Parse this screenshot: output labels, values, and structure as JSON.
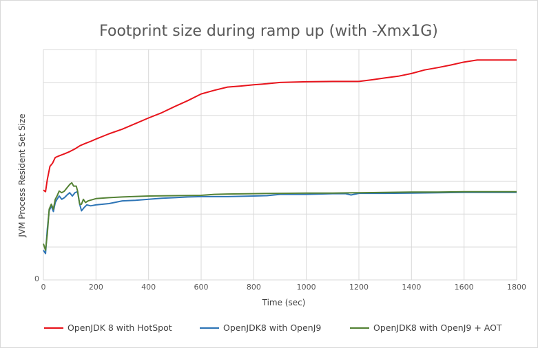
{
  "chart_data": {
    "type": "line",
    "title": "Footprint size during ramp up (with -Xmx1G)",
    "xlabel": "Time (sec)",
    "ylabel": "JVM Process Resident Set Size",
    "xlim": [
      0,
      1800
    ],
    "ylim": [
      0,
      7
    ],
    "x_ticks": [
      0,
      200,
      400,
      600,
      800,
      1000,
      1200,
      1400,
      1600,
      1800
    ],
    "y_tick_labels": [
      "0"
    ],
    "grid": true,
    "legend_position": "bottom",
    "colors": {
      "hotspot": "#e8141c",
      "openj9": "#2e75b6",
      "openj9_aot": "#548235",
      "grid": "#d9d9d9"
    },
    "series": [
      {
        "name": "OpenJDK 8 with HotSpot",
        "color": "#e8141c",
        "points": [
          [
            0,
            2.73
          ],
          [
            8,
            2.68
          ],
          [
            15,
            3.05
          ],
          [
            25,
            3.45
          ],
          [
            35,
            3.55
          ],
          [
            45,
            3.72
          ],
          [
            60,
            3.77
          ],
          [
            80,
            3.83
          ],
          [
            100,
            3.9
          ],
          [
            120,
            3.98
          ],
          [
            140,
            4.08
          ],
          [
            160,
            4.15
          ],
          [
            180,
            4.21
          ],
          [
            200,
            4.28
          ],
          [
            250,
            4.44
          ],
          [
            300,
            4.58
          ],
          [
            350,
            4.75
          ],
          [
            400,
            4.92
          ],
          [
            450,
            5.08
          ],
          [
            500,
            5.27
          ],
          [
            550,
            5.45
          ],
          [
            600,
            5.65
          ],
          [
            650,
            5.76
          ],
          [
            700,
            5.86
          ],
          [
            750,
            5.89
          ],
          [
            800,
            5.93
          ],
          [
            850,
            5.96
          ],
          [
            900,
            6.0
          ],
          [
            1000,
            6.02
          ],
          [
            1100,
            6.03
          ],
          [
            1200,
            6.03
          ],
          [
            1250,
            6.08
          ],
          [
            1300,
            6.14
          ],
          [
            1350,
            6.19
          ],
          [
            1400,
            6.27
          ],
          [
            1450,
            6.38
          ],
          [
            1500,
            6.45
          ],
          [
            1550,
            6.53
          ],
          [
            1600,
            6.62
          ],
          [
            1650,
            6.68
          ],
          [
            1700,
            6.68
          ],
          [
            1800,
            6.68
          ]
        ]
      },
      {
        "name": "OpenJDK8 with OpenJ9",
        "color": "#2e75b6",
        "points": [
          [
            0,
            0.9
          ],
          [
            8,
            0.8
          ],
          [
            15,
            1.55
          ],
          [
            22,
            2.1
          ],
          [
            30,
            2.25
          ],
          [
            38,
            2.08
          ],
          [
            45,
            2.35
          ],
          [
            52,
            2.45
          ],
          [
            60,
            2.55
          ],
          [
            70,
            2.45
          ],
          [
            80,
            2.5
          ],
          [
            90,
            2.58
          ],
          [
            100,
            2.65
          ],
          [
            110,
            2.55
          ],
          [
            120,
            2.65
          ],
          [
            130,
            2.68
          ],
          [
            138,
            2.3
          ],
          [
            145,
            2.1
          ],
          [
            155,
            2.2
          ],
          [
            165,
            2.28
          ],
          [
            180,
            2.25
          ],
          [
            200,
            2.28
          ],
          [
            250,
            2.32
          ],
          [
            300,
            2.4
          ],
          [
            350,
            2.42
          ],
          [
            400,
            2.45
          ],
          [
            450,
            2.48
          ],
          [
            500,
            2.5
          ],
          [
            550,
            2.52
          ],
          [
            600,
            2.53
          ],
          [
            700,
            2.53
          ],
          [
            800,
            2.55
          ],
          [
            850,
            2.56
          ],
          [
            900,
            2.6
          ],
          [
            1000,
            2.6
          ],
          [
            1100,
            2.62
          ],
          [
            1150,
            2.62
          ],
          [
            1170,
            2.58
          ],
          [
            1200,
            2.63
          ],
          [
            1300,
            2.63
          ],
          [
            1400,
            2.64
          ],
          [
            1500,
            2.65
          ],
          [
            1600,
            2.66
          ],
          [
            1700,
            2.66
          ],
          [
            1800,
            2.66
          ]
        ]
      },
      {
        "name": "OpenJDK8 with OpenJ9 + AOT",
        "color": "#548235",
        "points": [
          [
            0,
            1.1
          ],
          [
            8,
            0.9
          ],
          [
            15,
            1.4
          ],
          [
            22,
            2.15
          ],
          [
            30,
            2.3
          ],
          [
            38,
            2.15
          ],
          [
            45,
            2.45
          ],
          [
            52,
            2.55
          ],
          [
            60,
            2.7
          ],
          [
            70,
            2.65
          ],
          [
            80,
            2.7
          ],
          [
            90,
            2.8
          ],
          [
            100,
            2.9
          ],
          [
            108,
            2.95
          ],
          [
            115,
            2.85
          ],
          [
            125,
            2.85
          ],
          [
            130,
            2.7
          ],
          [
            138,
            2.3
          ],
          [
            145,
            2.3
          ],
          [
            152,
            2.45
          ],
          [
            160,
            2.35
          ],
          [
            170,
            2.4
          ],
          [
            200,
            2.47
          ],
          [
            250,
            2.5
          ],
          [
            300,
            2.52
          ],
          [
            400,
            2.55
          ],
          [
            500,
            2.56
          ],
          [
            600,
            2.57
          ],
          [
            650,
            2.6
          ],
          [
            700,
            2.61
          ],
          [
            800,
            2.62
          ],
          [
            900,
            2.63
          ],
          [
            1000,
            2.64
          ],
          [
            1100,
            2.64
          ],
          [
            1200,
            2.65
          ],
          [
            1300,
            2.66
          ],
          [
            1400,
            2.67
          ],
          [
            1500,
            2.67
          ],
          [
            1600,
            2.68
          ],
          [
            1700,
            2.68
          ],
          [
            1800,
            2.68
          ]
        ]
      }
    ]
  }
}
